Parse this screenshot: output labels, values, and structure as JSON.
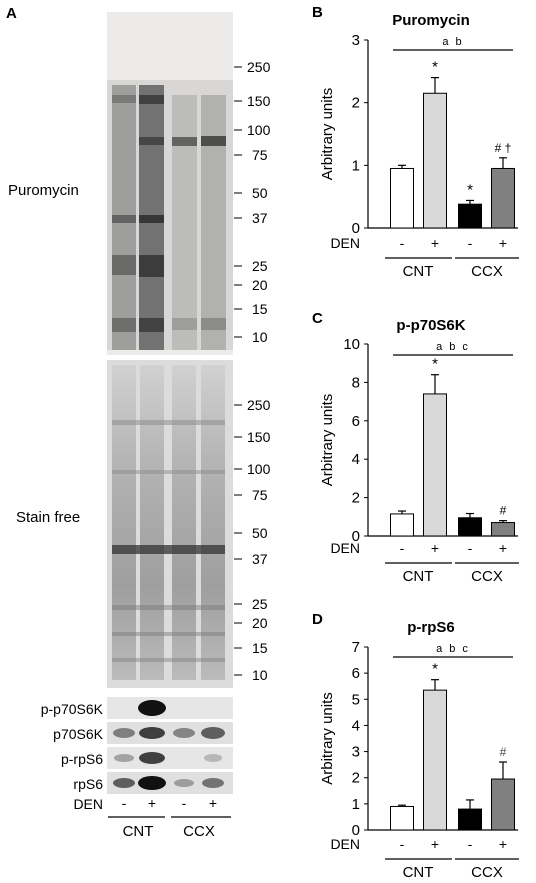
{
  "panel_a": {
    "letter": "A",
    "blot_labels": {
      "puromycin": "Puromycin",
      "stain_free": "Stain free",
      "p_p70s6k": "p-p70S6K",
      "p70s6k": "p70S6K",
      "p_rps6": "p-rpS6",
      "rps6": "rpS6"
    },
    "marker_labels_top": [
      "250",
      "150",
      "100",
      "75",
      "50",
      "37",
      "25",
      "20",
      "15",
      "10"
    ],
    "marker_labels_mid": [
      "250",
      "150",
      "100",
      "75",
      "50",
      "37",
      "25",
      "20",
      "15",
      "10"
    ],
    "den_label": "DEN",
    "den_signs": [
      "-",
      "+",
      "-",
      "+"
    ],
    "groups": [
      "CNT",
      "CCX"
    ]
  },
  "chart_data": [
    {
      "panel": "B",
      "type": "bar",
      "title": "Puromycin",
      "ylabel": "Arbitrary units",
      "ylim": [
        0,
        3
      ],
      "yticks": [
        "0",
        "1",
        "2",
        "3"
      ],
      "categories": [
        "CNT -",
        "CNT +",
        "CCX -",
        "CCX +"
      ],
      "values": [
        0.95,
        2.15,
        0.38,
        0.95
      ],
      "errors": [
        0.05,
        0.25,
        0.06,
        0.17
      ],
      "bar_colors": [
        "#ffffff",
        "#d9d9d9",
        "#000000",
        "#808080"
      ],
      "annotations": [
        "",
        "*",
        "*",
        "# †"
      ],
      "stat_letters": "a b",
      "den_label": "DEN",
      "den_signs": [
        "-",
        "+",
        "-",
        "+"
      ],
      "groups": [
        "CNT",
        "CCX"
      ]
    },
    {
      "panel": "C",
      "type": "bar",
      "title": "p-p70S6K",
      "ylabel": "Arbitrary units",
      "ylim": [
        0,
        10
      ],
      "yticks": [
        "0",
        "2",
        "4",
        "6",
        "8",
        "10"
      ],
      "categories": [
        "CNT -",
        "CNT +",
        "CCX -",
        "CCX +"
      ],
      "values": [
        1.15,
        7.4,
        0.95,
        0.7
      ],
      "errors": [
        0.15,
        1.0,
        0.22,
        0.1
      ],
      "bar_colors": [
        "#ffffff",
        "#d9d9d9",
        "#000000",
        "#808080"
      ],
      "annotations": [
        "",
        "*",
        "",
        "#"
      ],
      "stat_letters": "a b c",
      "den_label": "DEN",
      "den_signs": [
        "-",
        "+",
        "-",
        "+"
      ],
      "groups": [
        "CNT",
        "CCX"
      ]
    },
    {
      "panel": "D",
      "type": "bar",
      "title": "p-rpS6",
      "ylabel": "Arbitrary units",
      "ylim": [
        0,
        7
      ],
      "yticks": [
        "0",
        "1",
        "2",
        "3",
        "4",
        "5",
        "6",
        "7"
      ],
      "categories": [
        "CNT -",
        "CNT +",
        "CCX -",
        "CCX +"
      ],
      "values": [
        0.9,
        5.35,
        0.8,
        1.95
      ],
      "errors": [
        0.05,
        0.4,
        0.35,
        0.65
      ],
      "bar_colors": [
        "#ffffff",
        "#d9d9d9",
        "#000000",
        "#808080"
      ],
      "annotations": [
        "",
        "*",
        "",
        "#"
      ],
      "stat_letters": "a b c",
      "den_label": "DEN",
      "den_signs": [
        "-",
        "+",
        "-",
        "+"
      ],
      "groups": [
        "CNT",
        "CCX"
      ]
    }
  ]
}
